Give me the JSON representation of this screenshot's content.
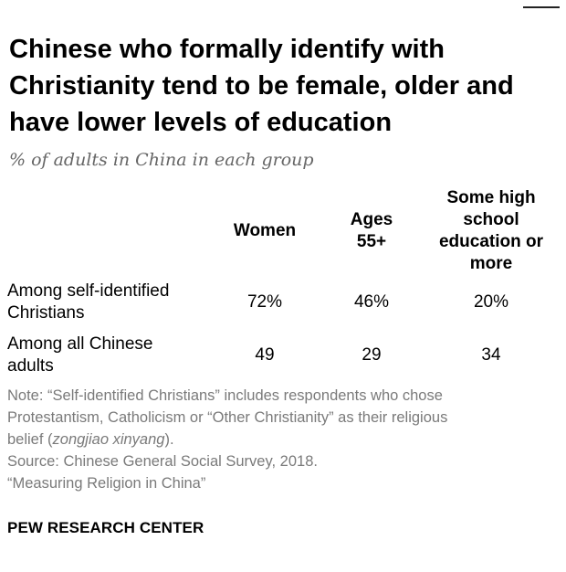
{
  "title": "Chinese who formally identify with Christianity tend to be female, older and have lower levels of education",
  "subtitle": "% of adults in China in each group",
  "chart_data": {
    "type": "table",
    "columns": [
      [
        "Women"
      ],
      [
        "Ages",
        "55+"
      ],
      [
        "Some high",
        "school",
        "education or",
        "more"
      ]
    ],
    "rows": [
      {
        "label": [
          "Among self-identified",
          "Christians"
        ],
        "values": [
          "72%",
          "46%",
          "20%"
        ]
      },
      {
        "label": [
          "Among all Chinese",
          "adults"
        ],
        "values": [
          "49",
          "29",
          "34"
        ]
      }
    ]
  },
  "notes": {
    "line1": "Note: “Self-identified Christians” includes respondents who chose",
    "line2": "Protestantism, Catholicism or “Other Christianity” as their religious",
    "line3_start": "belief (",
    "line3_italic": "zongjiao xinyang",
    "line3_end": ").",
    "source": "Source: Chinese General Social Survey, 2018.",
    "report": "“Measuring Religion in China”"
  },
  "brand": "PEW RESEARCH CENTER"
}
